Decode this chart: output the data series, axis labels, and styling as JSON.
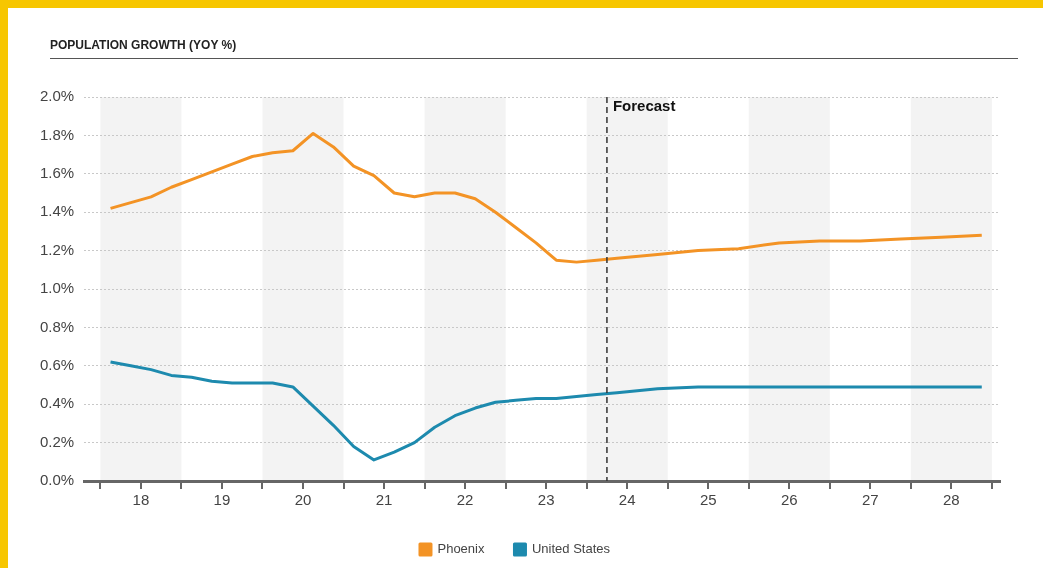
{
  "chart_data": {
    "type": "line",
    "title": "POPULATION GROWTH (YOY %)",
    "xlim": [
      17.3,
      28.6
    ],
    "xticks": [
      {
        "value": 17.5,
        "label": null
      },
      18,
      {
        "value": 18.5,
        "label": null
      },
      19,
      {
        "value": 19.5,
        "label": null
      },
      20,
      {
        "value": 20.5,
        "label": null
      },
      21,
      {
        "value": 21.5,
        "label": null
      },
      22,
      {
        "value": 22.5,
        "label": null
      },
      23,
      {
        "value": 23.5,
        "label": null
      },
      24,
      {
        "value": 24.5,
        "label": null
      },
      25,
      {
        "value": 25.5,
        "label": null
      },
      26,
      {
        "value": 26.5,
        "label": null
      },
      27,
      {
        "value": 27.5,
        "label": null
      },
      28,
      {
        "value": 28.5,
        "label": null
      }
    ],
    "ylim": [
      0,
      2
    ],
    "yticks": [
      {
        "value": 0,
        "label": "0.0%"
      },
      {
        "value": 0.2,
        "label": "0.2%"
      },
      {
        "value": 0.4,
        "label": "0.4%"
      },
      {
        "value": 0.6,
        "label": "0.6%"
      },
      {
        "value": 0.8,
        "label": "0.8%"
      },
      {
        "value": 1,
        "label": "1.0%"
      },
      {
        "value": 1.2,
        "label": "1.2%"
      },
      {
        "value": 1.4,
        "label": "1.4%"
      },
      {
        "value": 1.6,
        "label": "1.6%"
      },
      {
        "value": 1.8,
        "label": "1.8%"
      },
      {
        "value": 2,
        "label": "2.0%"
      }
    ],
    "x": [
      17.625,
      17.875,
      18.125,
      18.375,
      18.625,
      18.875,
      19.125,
      19.375,
      19.625,
      19.875,
      20.125,
      20.375,
      20.625,
      20.875,
      21.125,
      21.375,
      21.625,
      21.875,
      22.125,
      22.375,
      22.625,
      22.875,
      23.125,
      23.375,
      23.625,
      23.875,
      24.375,
      24.875,
      25.375,
      25.875,
      26.375,
      26.875,
      27.375,
      27.875,
      28.375
    ],
    "series": [
      {
        "name": "Phoenix",
        "color": "#f39325",
        "values": [
          1.42,
          1.45,
          1.48,
          1.53,
          1.57,
          1.61,
          1.65,
          1.69,
          1.71,
          1.72,
          1.81,
          1.74,
          1.64,
          1.59,
          1.5,
          1.48,
          1.5,
          1.5,
          1.47,
          1.4,
          1.32,
          1.24,
          1.15,
          1.14,
          1.15,
          1.16,
          1.18,
          1.2,
          1.21,
          1.24,
          1.25,
          1.25,
          1.26,
          1.27,
          1.28
        ]
      },
      {
        "name": "United States",
        "color": "#1d8aae",
        "values": [
          0.62,
          0.6,
          0.58,
          0.55,
          0.54,
          0.52,
          0.51,
          0.51,
          0.51,
          0.49,
          0.39,
          0.29,
          0.18,
          0.11,
          0.15,
          0.2,
          0.28,
          0.34,
          0.38,
          0.41,
          0.42,
          0.43,
          0.43,
          0.44,
          0.45,
          0.46,
          0.48,
          0.49,
          0.49,
          0.49,
          0.49,
          0.49,
          0.49,
          0.49,
          0.49
        ]
      }
    ],
    "ref_lines": [
      {
        "axis": "x",
        "value": 23.75,
        "label": "Forecast",
        "color": "#333333",
        "line_style": "dashed"
      }
    ],
    "bands": [
      {
        "axis": "x",
        "from": 17.5,
        "to": 18.5,
        "color": "#f3f3f3"
      },
      {
        "axis": "x",
        "from": 19.5,
        "to": 20.5,
        "color": "#f3f3f3"
      },
      {
        "axis": "x",
        "from": 21.5,
        "to": 22.5,
        "color": "#f3f3f3"
      },
      {
        "axis": "x",
        "from": 23.5,
        "to": 24.5,
        "color": "#f3f3f3"
      },
      {
        "axis": "x",
        "from": 25.5,
        "to": 26.5,
        "color": "#f3f3f3"
      },
      {
        "axis": "x",
        "from": 27.5,
        "to": 28.5,
        "color": "#f3f3f3"
      }
    ],
    "grid": "y",
    "legend": "bottom",
    "marker": "none",
    "line_style": "solid"
  }
}
